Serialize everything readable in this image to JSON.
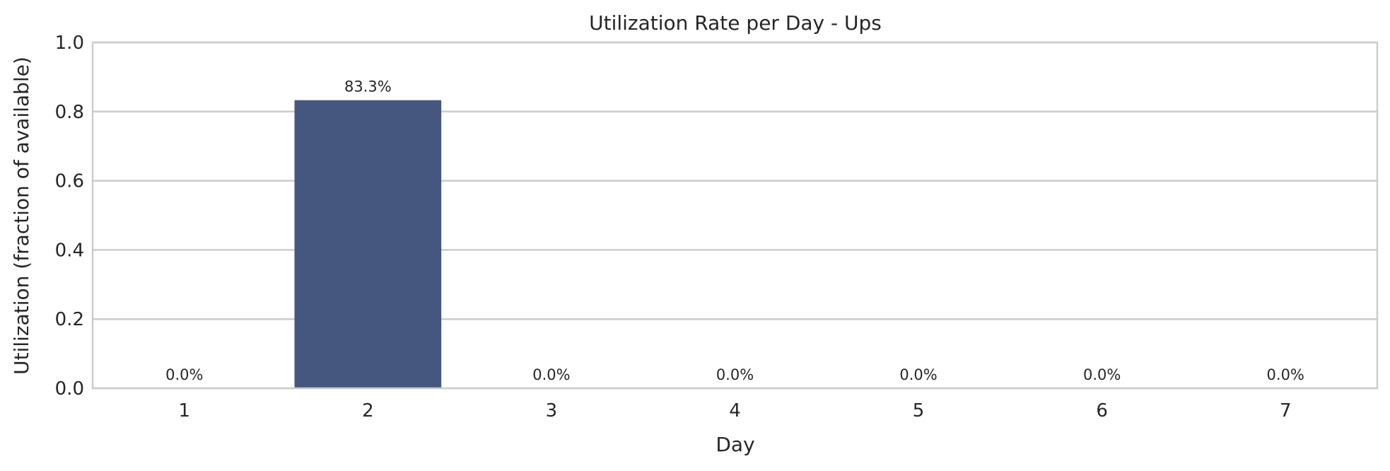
{
  "chart_data": {
    "type": "bar",
    "title": "Utilization Rate per Day - Ups",
    "xlabel": "Day",
    "ylabel": "Utilization (fraction of available)",
    "categories": [
      "1",
      "2",
      "3",
      "4",
      "5",
      "6",
      "7"
    ],
    "values": [
      0.0,
      0.833,
      0.0,
      0.0,
      0.0,
      0.0,
      0.0
    ],
    "data_labels": [
      "0.0%",
      "83.3%",
      "0.0%",
      "0.0%",
      "0.0%",
      "0.0%",
      "0.0%"
    ],
    "yticks": [
      "0.0",
      "0.2",
      "0.4",
      "0.6",
      "0.8",
      "1.0"
    ],
    "ylim": [
      0,
      1.0
    ],
    "grid": "horizontal",
    "bar_color": "#46577f",
    "legend": false
  }
}
